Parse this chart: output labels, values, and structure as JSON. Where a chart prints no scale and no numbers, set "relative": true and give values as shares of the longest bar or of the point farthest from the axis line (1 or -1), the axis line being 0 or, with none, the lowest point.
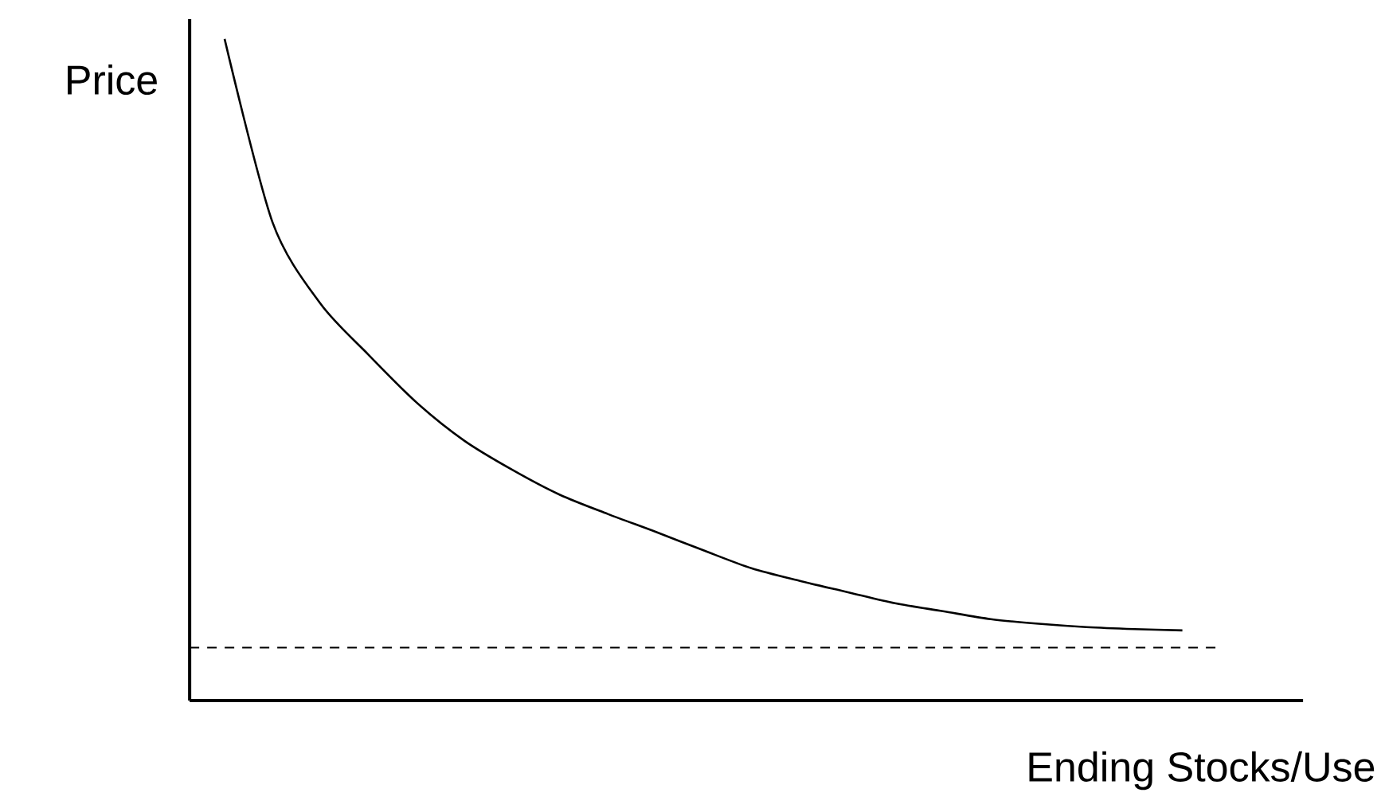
{
  "chart_data": {
    "type": "line",
    "relative": true,
    "xlabel": "Ending Stocks/Use",
    "ylabel": "Price",
    "categories": [
      null,
      null,
      null,
      null,
      null,
      null,
      null,
      null,
      null,
      null,
      null,
      null,
      null,
      null,
      null,
      null,
      null,
      null,
      null,
      null,
      null
    ],
    "values": [
      1,
      0.723,
      0.6,
      0.523,
      0.451,
      0.393,
      0.349,
      0.311,
      0.282,
      0.255,
      0.227,
      0.2,
      0.181,
      0.164,
      0.147,
      0.135,
      0.123,
      0.116,
      0.111,
      0.108,
      0.106
    ],
    "color": "#000000",
    "ref_lines": [
      {
        "axis": "y",
        "value": 0.08,
        "color": "#000000",
        "line_style": "dashed"
      }
    ]
  }
}
